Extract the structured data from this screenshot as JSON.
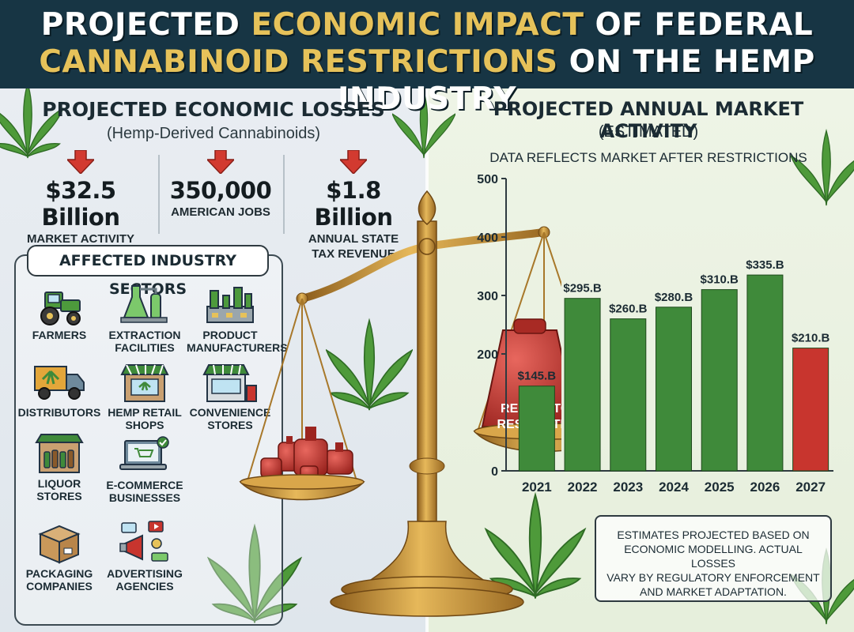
{
  "header": {
    "title_part1": "PROJECTED ",
    "title_hl1": "ECONOMIC IMPACT",
    "title_part2": " OF FEDERAL ",
    "title_hl2": "CANNABINOID RESTRICTIONS",
    "title_part3": " ON THE HEMP INDUSTRY"
  },
  "losses": {
    "title": "PROJECTED ECONOMIC LOSSES",
    "subtitle": "(Hemp-Derived Cannabinoids)",
    "stats": [
      {
        "value": "$32.5 Billion",
        "label": "MARKET ACTIVITY",
        "label2": ""
      },
      {
        "value": "350,000",
        "label": "AMERICAN JOBS",
        "label2": ""
      },
      {
        "value": "$1.8 Billion",
        "label": "ANNUAL STATE",
        "label2": "TAX REVENUE"
      }
    ]
  },
  "sectors": {
    "title": "AFFECTED INDUSTRY SECTORS",
    "items": [
      {
        "line1": "FARMERS",
        "line2": "",
        "icon": "tractor-icon"
      },
      {
        "line1": "EXTRACTION",
        "line2": "FACILITIES",
        "icon": "lab-flask-icon"
      },
      {
        "line1": "PRODUCT",
        "line2": "MANUFACTURERS",
        "icon": "factory-icon"
      },
      {
        "line1": "DISTRIBUTORS",
        "line2": "",
        "icon": "delivery-truck-icon"
      },
      {
        "line1": "HEMP RETAIL",
        "line2": "SHOPS",
        "icon": "storefront-icon"
      },
      {
        "line1": "CONVENIENCE",
        "line2": "STORES",
        "icon": "convenience-store-icon"
      },
      {
        "line1": "LIQUOR",
        "line2": "STORES",
        "icon": "liquor-bottles-icon"
      },
      {
        "line1": "E-COMMERCE",
        "line2": "BUSINESSES",
        "icon": "laptop-cart-icon"
      },
      {
        "line1": "",
        "line2": "",
        "icon": ""
      },
      {
        "line1": "PACKAGING",
        "line2": "COMPANIES",
        "icon": "cardboard-box-icon"
      },
      {
        "line1": "ADVERTISING",
        "line2": "AGENCIES",
        "icon": "megaphone-icon"
      }
    ]
  },
  "scale": {
    "weight_label_line1": "REGULATORY",
    "weight_label_line2": "RESTRICTIONS"
  },
  "market": {
    "title": "PROJECTED ANNUAL MARKET ACTIVITY",
    "subtitle": "(ESTIMATED)",
    "note": "DATA REFLECTS MARKET AFTER RESTRICTIONS"
  },
  "chart_data": {
    "type": "bar",
    "title": "PROJECTED ANNUAL MARKET ACTIVITY",
    "categories": [
      "2021",
      "2022",
      "2023",
      "2024",
      "2025",
      "2026",
      "2027"
    ],
    "values": [
      145,
      295,
      260,
      280,
      310,
      335,
      210
    ],
    "data_labels": [
      "$145.B",
      "$295.B",
      "$260.B",
      "$280.B",
      "$310.B",
      "$335.B",
      "$210.B"
    ],
    "bar_colors": [
      "#3f8a3a",
      "#3f8a3a",
      "#3f8a3a",
      "#3f8a3a",
      "#3f8a3a",
      "#3f8a3a",
      "#c8352e"
    ],
    "ylim": [
      0,
      500
    ],
    "yticks": [
      "0",
      "200",
      "300",
      "400",
      "500"
    ],
    "ytick_values": [
      0,
      200,
      300,
      400,
      500
    ],
    "grid": false
  },
  "disclaimer": {
    "line1": "ESTIMATES PROJECTED BASED ON",
    "line2": "ECONOMIC MODELLING. ACTUAL LOSSES",
    "line3": "VARY BY REGULATORY ENFORCEMENT",
    "line4": "AND MARKET ADAPTATION."
  },
  "colors": {
    "header_bg": "#173544",
    "accent_gold": "#e6c25a",
    "arrow_red": "#d23a30",
    "bar_green": "#3f8a3a",
    "bar_red": "#c8352e",
    "brass": "#c9922e"
  }
}
